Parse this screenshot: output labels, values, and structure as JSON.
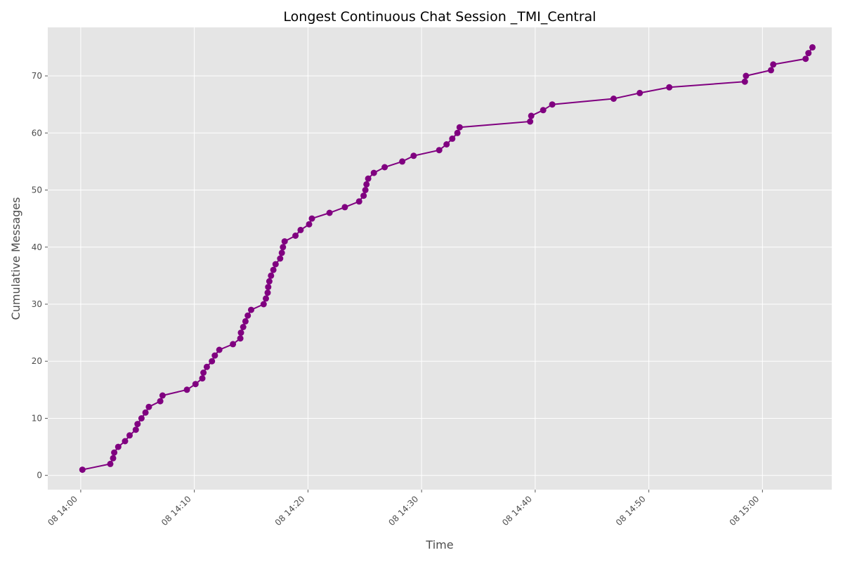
{
  "chart_data": {
    "type": "line",
    "title": "Longest Continuous Chat Session _TMI_Central",
    "xlabel": "Time",
    "ylabel": "Cumulative Messages",
    "x_unit": "minutes after 14:00",
    "xlim": [
      -2.9,
      66.1
    ],
    "ylim": [
      -2.5,
      78.5
    ],
    "grid": true,
    "background": "#e5e5e5",
    "grid_color": "#ffffff",
    "series": [
      {
        "color": "#800080",
        "x": [
          0.15,
          2.6,
          2.85,
          2.95,
          3.3,
          3.9,
          4.3,
          4.85,
          5.0,
          5.35,
          5.7,
          6.0,
          7.0,
          7.2,
          9.35,
          10.1,
          10.7,
          10.8,
          11.1,
          11.55,
          11.8,
          12.2,
          13.4,
          14.05,
          14.1,
          14.3,
          14.5,
          14.7,
          15.0,
          16.1,
          16.3,
          16.45,
          16.5,
          16.6,
          16.75,
          16.95,
          17.15,
          17.55,
          17.7,
          17.8,
          17.95,
          18.9,
          19.35,
          20.1,
          20.35,
          21.9,
          23.25,
          24.5,
          24.9,
          25.05,
          25.15,
          25.3,
          25.8,
          26.75,
          28.3,
          29.3,
          31.55,
          32.2,
          32.7,
          33.15,
          33.35,
          39.55,
          39.65,
          40.7,
          41.5,
          46.9,
          49.2,
          51.8,
          58.45,
          58.55,
          60.75,
          60.95,
          63.8,
          64.05,
          64.4
        ],
        "y": [
          1,
          2,
          3,
          4,
          5,
          6,
          7,
          8,
          9,
          10,
          11,
          12,
          13,
          14,
          15,
          16,
          17,
          18,
          19,
          20,
          21,
          22,
          23,
          24,
          25,
          26,
          27,
          28,
          29,
          30,
          31,
          32,
          33,
          34,
          35,
          36,
          37,
          38,
          39,
          40,
          41,
          42,
          43,
          44,
          45,
          46,
          47,
          48,
          49,
          50,
          51,
          52,
          53,
          54,
          55,
          56,
          57,
          58,
          59,
          60,
          61,
          62,
          63,
          64,
          65,
          66,
          67,
          68,
          69,
          70,
          71,
          72,
          73,
          74,
          75
        ]
      }
    ],
    "x_ticks": [
      {
        "value": 0,
        "label": "08 14:00"
      },
      {
        "value": 10,
        "label": "08 14:10"
      },
      {
        "value": 20,
        "label": "08 14:20"
      },
      {
        "value": 30,
        "label": "08 14:30"
      },
      {
        "value": 40,
        "label": "08 14:40"
      },
      {
        "value": 50,
        "label": "08 14:50"
      },
      {
        "value": 60,
        "label": "08 15:00"
      }
    ],
    "y_ticks": [
      {
        "value": 0,
        "label": "0"
      },
      {
        "value": 10,
        "label": "10"
      },
      {
        "value": 20,
        "label": "20"
      },
      {
        "value": 30,
        "label": "30"
      },
      {
        "value": 40,
        "label": "40"
      },
      {
        "value": 50,
        "label": "50"
      },
      {
        "value": 60,
        "label": "60"
      },
      {
        "value": 70,
        "label": "70"
      }
    ]
  }
}
